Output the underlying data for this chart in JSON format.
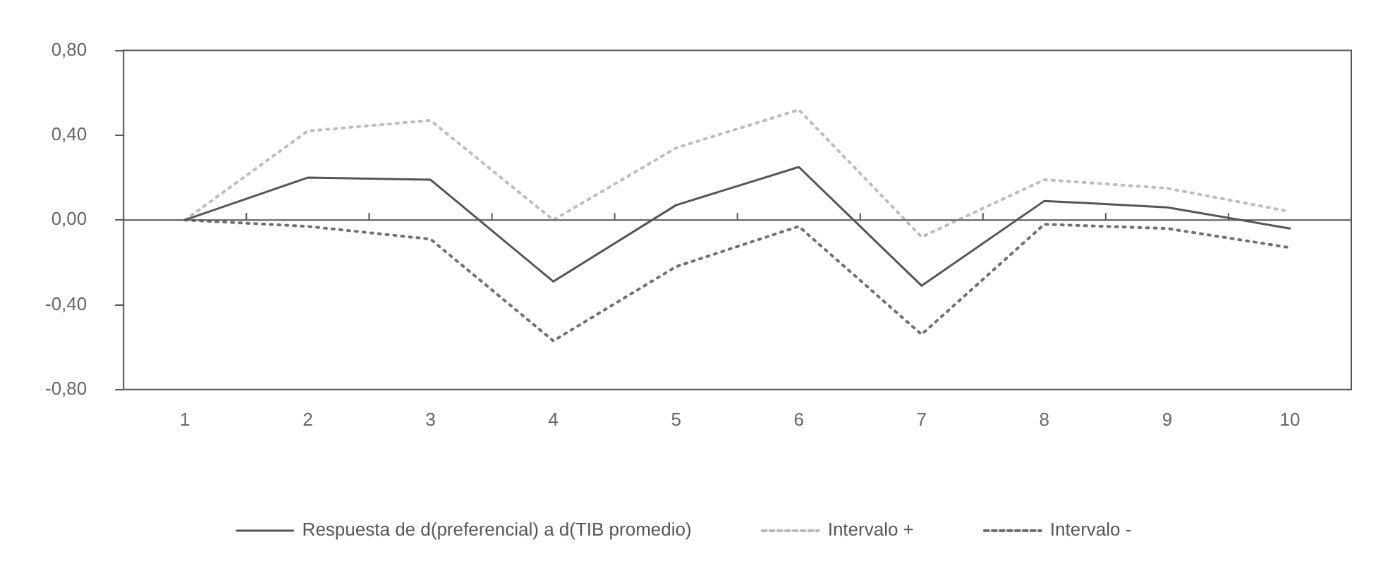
{
  "chart_data": {
    "type": "line",
    "categories": [
      "1",
      "2",
      "3",
      "4",
      "5",
      "6",
      "7",
      "8",
      "9",
      "10"
    ],
    "series": [
      {
        "name": "Respuesta de d(preferencial) a d(TIB promedio)",
        "color": "#555555",
        "line_style": "solid",
        "values": [
          0,
          0.2,
          0.19,
          -0.29,
          0.07,
          0.25,
          -0.31,
          0.09,
          0.06,
          -0.04
        ]
      },
      {
        "name": "Intervalo +",
        "color": "#b8bcc4",
        "line_style": "dotted",
        "values": [
          0,
          0.42,
          0.47,
          0,
          0.34,
          0.52,
          -0.08,
          0.19,
          0.15,
          0.04
        ]
      },
      {
        "name": "Intervalo -",
        "color": "#707070",
        "line_style": "dotted",
        "values": [
          0,
          -0.03,
          -0.09,
          -0.57,
          -0.22,
          -0.03,
          -0.54,
          -0.02,
          -0.04,
          -0.13
        ]
      }
    ],
    "ylim": [
      -0.8,
      0.8
    ],
    "yticks": [
      {
        "value": 0.8,
        "label": "0,80"
      },
      {
        "value": 0.4,
        "label": "0,40"
      },
      {
        "value": 0,
        "label": "0,00"
      },
      {
        "value": -0.4,
        "label": "-0,40"
      },
      {
        "value": -0.8,
        "label": "-0,80"
      }
    ],
    "ref_lines": [
      {
        "axis": "y",
        "value": 0,
        "color": "#555555"
      }
    ],
    "grid": false,
    "legend": "bottom",
    "marker": "none"
  }
}
